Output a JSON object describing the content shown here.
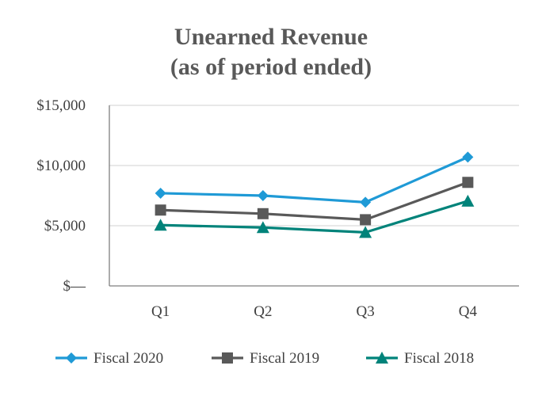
{
  "chart_data": {
    "type": "line",
    "title": [
      "Unearned Revenue",
      "(as of period ended)"
    ],
    "categories": [
      "Q1",
      "Q2",
      "Q3",
      "Q4"
    ],
    "ylim": [
      0,
      15000
    ],
    "yticks": [
      0,
      5000,
      10000,
      15000
    ],
    "ytick_labels": [
      "$—",
      "$5,000",
      "$10,000",
      "$15,000"
    ],
    "grid": true,
    "legend_position": "bottom",
    "series": [
      {
        "name": "Fiscal 2020",
        "color": "#1f9ad6",
        "marker": "diamond",
        "values": [
          7700,
          7500,
          6950,
          10700
        ]
      },
      {
        "name": "Fiscal 2019",
        "color": "#595959",
        "marker": "square",
        "values": [
          6300,
          6000,
          5500,
          8600
        ]
      },
      {
        "name": "Fiscal 2018",
        "color": "#00837a",
        "marker": "triangle",
        "values": [
          5050,
          4850,
          4450,
          7050
        ]
      }
    ]
  }
}
